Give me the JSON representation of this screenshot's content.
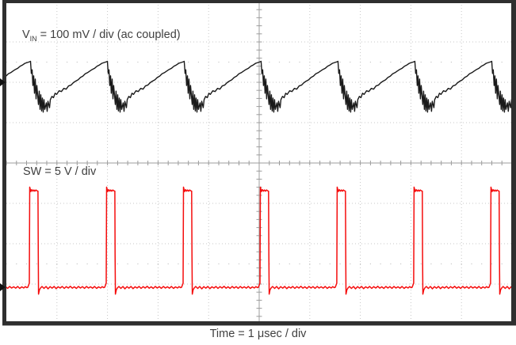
{
  "labels": {
    "vin": {
      "prefix": "V",
      "sub": "IN",
      "rest": "= 100 mV / div (ac coupled)"
    },
    "sw": "SW = 5 V / div",
    "time": "Time = 1 μsec / div"
  },
  "colors": {
    "vin_trace": "#1a1a1a",
    "sw_trace": "#f50d0d",
    "grid": "#c7c7c7",
    "axis": "#9c9c9c",
    "border": "#2f2f2f",
    "label_text": "#404040"
  },
  "markers": [
    {
      "name": "ch1-reference-arrow",
      "channel": "VIN",
      "position": "left-edge, 2 divisions above center"
    },
    {
      "name": "ch2-reference-arrow",
      "channel": "SW",
      "position": "left-edge, ~3.1 divisions below center"
    }
  ],
  "chart_data": {
    "type": "line",
    "title": "",
    "xlabel": "Time = 1 μsec / div",
    "x_units": "μs",
    "x_range_us": [
      0,
      10
    ],
    "x_divisions": 10,
    "y_divisions": 8,
    "grid": "dotted with solid center crosshair, minor ticks every 0.2 div",
    "legend_position": "labels drawn inside plot",
    "series": [
      {
        "name": "VIN",
        "label": "VIN = 100 mV / div (ac coupled)",
        "units": "mV",
        "scale_per_div": 100,
        "coupling": "ac",
        "period_us": 1.52,
        "first_peak_us": 0.478,
        "peak_mv": 52,
        "min_mv": -74,
        "description": "input ripple: slow ramp up, sharp drop with ringing each switching cycle",
        "period_samples": [
          [
            0.0,
            52
          ],
          [
            0.016,
            22
          ],
          [
            0.031,
            31
          ],
          [
            0.047,
            -8
          ],
          [
            0.063,
            16
          ],
          [
            0.078,
            -27
          ],
          [
            0.094,
            8
          ],
          [
            0.11,
            -41
          ],
          [
            0.125,
            -8
          ],
          [
            0.157,
            -55
          ],
          [
            0.172,
            -22
          ],
          [
            0.188,
            -67
          ],
          [
            0.204,
            -31
          ],
          [
            0.219,
            -71
          ],
          [
            0.235,
            -39
          ],
          [
            0.251,
            -74
          ],
          [
            0.266,
            -43
          ],
          [
            0.282,
            -67
          ],
          [
            0.313,
            -51
          ],
          [
            0.329,
            -72
          ],
          [
            0.345,
            -47
          ],
          [
            0.376,
            -63
          ],
          [
            0.392,
            -43
          ],
          [
            0.423,
            -35
          ],
          [
            0.455,
            -38
          ],
          [
            0.486,
            -27
          ],
          [
            0.517,
            -30
          ],
          [
            0.564,
            -21
          ],
          [
            0.611,
            -23
          ],
          [
            0.658,
            -15
          ],
          [
            0.705,
            -17
          ],
          [
            0.752,
            -9
          ],
          [
            0.799,
            -7
          ],
          [
            0.846,
            -1
          ],
          [
            0.893,
            3
          ],
          [
            0.94,
            6
          ],
          [
            0.987,
            12
          ],
          [
            1.034,
            15
          ],
          [
            1.081,
            21
          ],
          [
            1.129,
            24
          ],
          [
            1.176,
            28
          ],
          [
            1.223,
            32
          ],
          [
            1.27,
            35
          ],
          [
            1.317,
            40
          ],
          [
            1.364,
            43
          ],
          [
            1.411,
            47
          ],
          [
            1.458,
            49
          ],
          [
            1.505,
            51
          ]
        ]
      },
      {
        "name": "SW",
        "label": "SW = 5 V / div",
        "units": "V",
        "scale_per_div": 5,
        "period_us": 1.52,
        "first_rise_us": 0.455,
        "pulse_width_us": 0.17,
        "high_v": 12,
        "low_v": 0,
        "description": "switch-node pulse train, ~11% duty, small overshoot and undershoot",
        "period_samples": [
          [
            -0.03,
            0.0
          ],
          [
            0.0,
            0.5
          ],
          [
            0.008,
            12.4
          ],
          [
            0.03,
            11.85
          ],
          [
            0.05,
            12.1
          ],
          [
            0.07,
            11.9
          ],
          [
            0.09,
            12.05
          ],
          [
            0.11,
            11.9
          ],
          [
            0.13,
            12.05
          ],
          [
            0.15,
            11.95
          ],
          [
            0.17,
            11.9
          ],
          [
            0.176,
            4.0
          ],
          [
            0.182,
            -0.85
          ],
          [
            0.2,
            -0.3
          ],
          [
            0.22,
            -0.1
          ],
          [
            0.25,
            0.1
          ],
          [
            0.29,
            -0.15
          ],
          [
            0.33,
            0.1
          ],
          [
            0.37,
            -0.2
          ],
          [
            0.41,
            0.08
          ],
          [
            0.45,
            -0.12
          ],
          [
            0.49,
            0.1
          ],
          [
            0.53,
            -0.18
          ],
          [
            0.57,
            0.06
          ],
          [
            0.61,
            -0.1
          ],
          [
            0.65,
            0.1
          ],
          [
            0.69,
            -0.15
          ],
          [
            0.73,
            0.08
          ],
          [
            0.77,
            -0.1
          ],
          [
            0.81,
            0.12
          ],
          [
            0.85,
            -0.12
          ],
          [
            0.89,
            0.06
          ],
          [
            0.93,
            -0.15
          ],
          [
            0.97,
            0.1
          ],
          [
            1.01,
            -0.1
          ],
          [
            1.05,
            0.08
          ],
          [
            1.09,
            -0.14
          ],
          [
            1.13,
            0.1
          ],
          [
            1.17,
            -0.1
          ],
          [
            1.21,
            0.06
          ],
          [
            1.25,
            -0.12
          ],
          [
            1.29,
            0.1
          ],
          [
            1.33,
            -0.15
          ],
          [
            1.37,
            0.05
          ],
          [
            1.41,
            -0.1
          ],
          [
            1.44,
            0.08
          ],
          [
            1.47,
            -0.05
          ]
        ]
      }
    ]
  }
}
